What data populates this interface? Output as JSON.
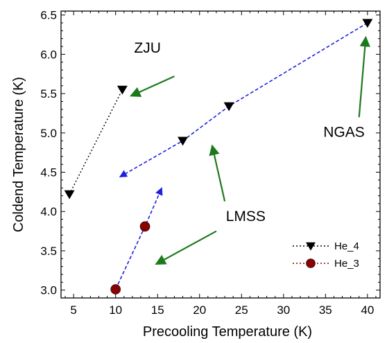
{
  "chart_data": {
    "type": "scatter",
    "title": "",
    "xlabel": "Precooling Temperature (K)",
    "ylabel": "Coldend Temperature (K)",
    "xlim": [
      3.5,
      41.5
    ],
    "ylim": [
      2.9,
      6.55
    ],
    "xticks": [
      5,
      10,
      15,
      20,
      25,
      30,
      35,
      40
    ],
    "yticks": [
      3.0,
      3.5,
      4.0,
      4.5,
      5.0,
      5.5,
      6.0,
      6.5
    ],
    "xtick_labels": [
      "5",
      "10",
      "15",
      "20",
      "25",
      "30",
      "35",
      "40"
    ],
    "ytick_labels": [
      "3.0",
      "3.5",
      "4.0",
      "4.5",
      "5.0",
      "5.5",
      "6.0",
      "6.5"
    ],
    "grid": false,
    "legend_position": "bottom-right",
    "series": [
      {
        "name": "He_4",
        "marker": "triangle-down",
        "color": "#000000",
        "groups": [
          {
            "x": [
              4.5,
              10.8
            ],
            "y": [
              4.22,
              5.55
            ]
          },
          {
            "x": [
              18.0,
              23.5,
              40.0
            ],
            "y": [
              4.9,
              5.34,
              6.4
            ]
          }
        ]
      },
      {
        "name": "He_3",
        "marker": "circle",
        "color": "#8b0000",
        "groups": [
          {
            "x": [
              10.0,
              13.5
            ],
            "y": [
              3.01,
              3.81
            ]
          }
        ]
      }
    ],
    "trend_lines": [
      {
        "style": "dotted",
        "color": "#000000",
        "x": [
          4.5,
          10.8
        ],
        "y": [
          4.22,
          5.55
        ]
      },
      {
        "style": "dashed-arrow",
        "color": "#1f1fe0",
        "x": [
          40.0,
          23.5,
          18.0,
          10.5
        ],
        "y": [
          6.4,
          5.34,
          4.9,
          4.44
        ]
      },
      {
        "style": "dashed-arrow",
        "color": "#1f1fe0",
        "x": [
          10.0,
          13.5,
          15.5
        ],
        "y": [
          3.01,
          3.81,
          4.3
        ]
      }
    ],
    "annotations": [
      {
        "text": "ZJU",
        "text_at": [
          13.8,
          6.02
        ],
        "arrow_from": [
          17.0,
          5.72
        ],
        "arrow_to": [
          11.8,
          5.47
        ],
        "color": "#1b7a1b"
      },
      {
        "text": "NGAS",
        "text_at": [
          37.2,
          4.95
        ],
        "arrow_from": [
          39.0,
          5.2
        ],
        "arrow_to": [
          39.8,
          6.22
        ],
        "color": "#1b7a1b"
      },
      {
        "text": "LMSS",
        "text_at": [
          25.5,
          3.88
        ],
        "arrow_from": [
          23.0,
          4.13
        ],
        "arrow_to": [
          21.5,
          4.84
        ],
        "color": "#1b7a1b"
      },
      {
        "text": "",
        "arrow_from": [
          22.0,
          3.75
        ],
        "arrow_to": [
          14.8,
          3.33
        ],
        "color": "#1b7a1b"
      }
    ]
  }
}
